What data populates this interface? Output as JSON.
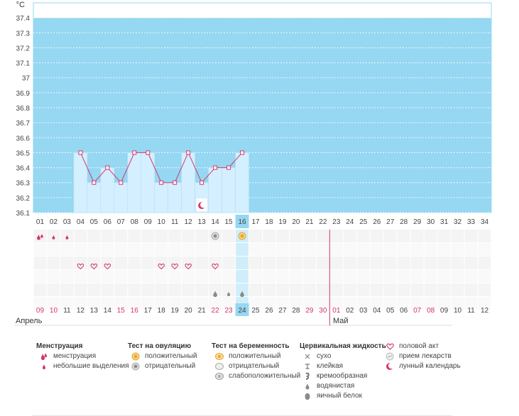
{
  "chart_data": {
    "type": "line",
    "unit_label": "°C",
    "ylim": [
      36.1,
      37.5
    ],
    "y_ticks": [
      "37.4",
      "37.3",
      "37.2",
      "37.1",
      "37",
      "36.9",
      "36.8",
      "36.7",
      "36.6",
      "36.5",
      "36.4",
      "36.3",
      "36.2",
      "36.1"
    ],
    "cycle_days": [
      "01",
      "02",
      "03",
      "04",
      "05",
      "06",
      "07",
      "08",
      "09",
      "10",
      "11",
      "12",
      "13",
      "14",
      "15",
      "16",
      "17",
      "18",
      "19",
      "20",
      "21",
      "22",
      "23",
      "24",
      "25",
      "26",
      "27",
      "28",
      "29",
      "30",
      "31",
      "32",
      "33",
      "34"
    ],
    "current_day": "16",
    "series": [
      {
        "values": [
          null,
          null,
          null,
          36.5,
          36.3,
          36.4,
          36.3,
          36.5,
          36.5,
          36.3,
          36.3,
          36.5,
          36.3,
          36.4,
          36.4,
          36.5,
          null,
          null,
          null,
          null,
          null,
          null,
          null,
          null,
          null,
          null,
          null,
          null,
          null,
          null,
          null,
          null,
          null,
          null
        ]
      }
    ],
    "grid": true
  },
  "calendar": {
    "dates": [
      "09",
      "10",
      "11",
      "12",
      "13",
      "14",
      "15",
      "16",
      "17",
      "18",
      "19",
      "20",
      "21",
      "22",
      "23",
      "24",
      "25",
      "26",
      "27",
      "28",
      "29",
      "30",
      "01",
      "02",
      "03",
      "04",
      "05",
      "06",
      "07",
      "08",
      "09",
      "10",
      "11",
      "12"
    ],
    "weekend_indices": [
      0,
      1,
      6,
      7,
      13,
      14,
      20,
      21,
      22,
      28,
      29
    ],
    "today_index": 15,
    "months": [
      "Апрель",
      "Май"
    ]
  },
  "markers": {
    "moon": [
      12
    ],
    "menstruation": {
      "heavy": [
        0
      ],
      "light": [
        1,
        2
      ]
    },
    "ovulation_negative": [
      13
    ],
    "ovulation_positive": [
      15
    ],
    "intercourse": [
      3,
      4,
      5,
      9,
      10,
      11,
      13
    ],
    "drops": [
      13,
      14,
      15
    ]
  },
  "legend": {
    "menstruation": {
      "title": "Менструация",
      "items": [
        "менструация",
        "небольшие выделения"
      ]
    },
    "ovulation": {
      "title": "Тест на овуляцию",
      "items": [
        "положительный",
        "отрицательный"
      ]
    },
    "pregnancy": {
      "title": "Тест на беременность",
      "items": [
        "положительный",
        "отрицательный",
        "слабоположительный"
      ]
    },
    "cervical": {
      "title": "Цервикальная жидкость",
      "items": [
        "сухо",
        "клейкая",
        "кремообразная",
        "водянистая",
        "яичный белок"
      ]
    },
    "other": {
      "items": [
        "половой акт",
        "прием лекарств",
        "лунный календарь"
      ]
    }
  },
  "colors": {
    "sky": "#96d7f2",
    "bar": "#d4efff",
    "line": "#d2386c",
    "weekend": "#d2386c",
    "today": "#96d7f2"
  }
}
